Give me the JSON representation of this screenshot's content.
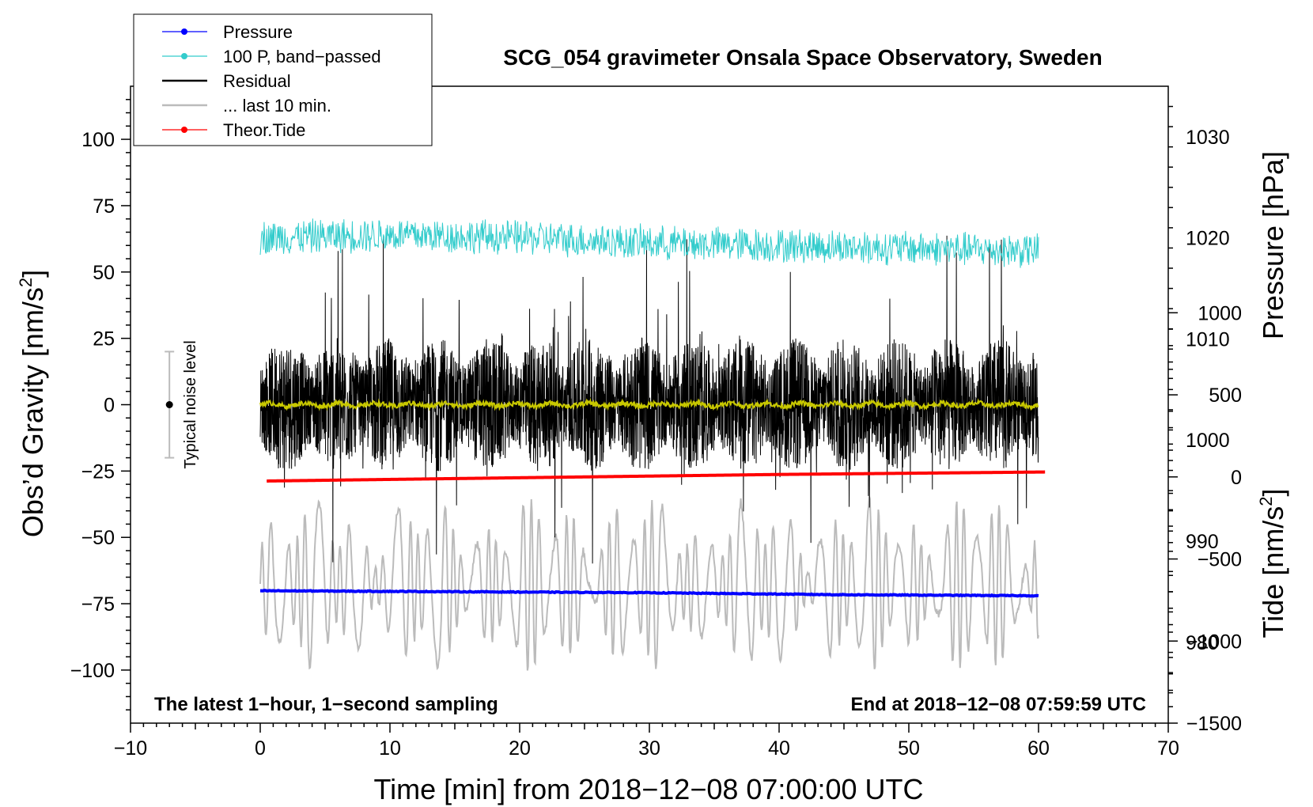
{
  "chart_data": {
    "type": "line",
    "title": "SCG_054 gravimeter Onsala Space Observatory, Sweden",
    "xlabel": "Time [min] from 2018−12−08 07:00:00 UTC",
    "ylabel_main": "Obs’d Gravity [nm/s",
    "ylabel_sup": "2",
    "ylabel_close": "]",
    "ylabel_pressure": "Pressure [hPa]",
    "ylabel_tide_main": "Tide [nm/s",
    "ylabel_tide_sup": "2",
    "ylabel_tide_close": "]",
    "xlim": [
      -10,
      70
    ],
    "ylim": [
      -120,
      120
    ],
    "pressure_lim": [
      972,
      1035
    ],
    "tide_lim": [
      -1500,
      2380
    ],
    "x_ticks": [
      "−10",
      "0",
      "10",
      "20",
      "30",
      "40",
      "50",
      "60",
      "70"
    ],
    "x_tick_values": [
      -10,
      0,
      10,
      20,
      30,
      40,
      50,
      60,
      70
    ],
    "y_ticks": [
      "−100",
      "−75",
      "−50",
      "−25",
      "0",
      "25",
      "50",
      "75",
      "100"
    ],
    "y_tick_values": [
      -100,
      -75,
      -50,
      -25,
      0,
      25,
      50,
      75,
      100
    ],
    "pressure_ticks": [
      "980",
      "990",
      "1000",
      "1010",
      "1020",
      "1030"
    ],
    "pressure_tick_values": [
      980,
      990,
      1000,
      1010,
      1020,
      1030
    ],
    "tide_ticks": [
      "−1500",
      "−1000",
      "−500",
      "0",
      "500",
      "1000"
    ],
    "tide_tick_values": [
      -1500,
      -1000,
      -500,
      0,
      500,
      1000
    ],
    "annotation_left": "The latest 1−hour, 1−second sampling",
    "annotation_right": "End at 2018−12−08 07:59:59 UTC",
    "noise_label": "Typical noise level",
    "noise_range": [
      -20,
      20
    ],
    "noise_x": -7,
    "legend": [
      {
        "label": "Pressure",
        "color": "#0000ff",
        "marker": true
      },
      {
        "label": "100 P, band−passed",
        "color": "#33cccc",
        "marker": true
      },
      {
        "label": "Residual",
        "color": "#000000",
        "marker": false
      },
      {
        "label": "... last 10 min.",
        "color": "#bbbbbb",
        "marker": false
      },
      {
        "label": "Theor.Tide",
        "color": "#ff0000",
        "marker": true
      }
    ],
    "series": [
      {
        "name": "Pressure",
        "axis": "pressure",
        "color": "#0000ff",
        "x": [
          0,
          15,
          30,
          45,
          60
        ],
        "values": [
          985.1,
          985.0,
          984.9,
          984.7,
          984.6
        ]
      },
      {
        "name": "100 P, band−passed",
        "axis": "gravity",
        "color": "#33cccc",
        "x": [
          0,
          10,
          20,
          30,
          40,
          50,
          60
        ],
        "values": [
          63,
          64,
          63,
          61,
          60,
          59,
          58
        ],
        "amplitude": 6
      },
      {
        "name": "Residual",
        "axis": "gravity",
        "color": "#000000",
        "x": [
          0,
          60
        ],
        "values": [
          0,
          0
        ],
        "amplitude": 14
      },
      {
        "name": "Residual smoothed",
        "axis": "gravity",
        "color": "#c8c800",
        "x": [
          0,
          60
        ],
        "values": [
          0,
          0
        ]
      },
      {
        "name": "... last 10 min.",
        "axis": "gravity",
        "color": "#bbbbbb",
        "x": [
          0,
          60
        ],
        "values": [
          -68,
          -68
        ],
        "amplitude": 22
      },
      {
        "name": "Theor.Tide",
        "axis": "tide",
        "color": "#ff0000",
        "x": [
          0.5,
          20,
          40,
          60.5
        ],
        "values": [
          -25,
          -5,
          15,
          30
        ]
      }
    ]
  }
}
